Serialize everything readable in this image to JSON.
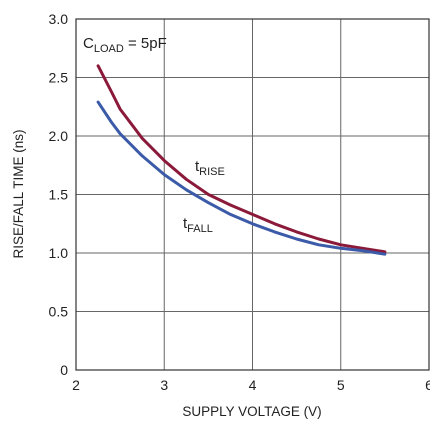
{
  "chart_data": {
    "type": "line",
    "xlabel": "SUPPLY VOLTAGE (V)",
    "ylabel": "RISE/FALL TIME (ns)",
    "xlim": [
      2,
      6
    ],
    "ylim": [
      0,
      3.0
    ],
    "x_ticks": [
      "2",
      "3",
      "4",
      "5",
      "6"
    ],
    "y_ticks": [
      "0",
      "0.5",
      "1.0",
      "1.5",
      "2.0",
      "2.5",
      "3.0"
    ],
    "grid": true,
    "annotations": {
      "condition": {
        "base": "C",
        "sub": "LOAD",
        "rest": " = 5pF"
      },
      "rise_label": {
        "base": "t",
        "sub": "RISE"
      },
      "fall_label": {
        "base": "t",
        "sub": "FALL"
      }
    },
    "series": [
      {
        "name": "tRISE",
        "color": "#8b1a3a",
        "x": [
          2.25,
          2.4,
          2.5,
          2.75,
          3.0,
          3.25,
          3.5,
          3.75,
          4.0,
          4.25,
          4.5,
          4.75,
          5.0,
          5.25,
          5.5
        ],
        "y": [
          2.6,
          2.38,
          2.23,
          1.98,
          1.79,
          1.63,
          1.5,
          1.41,
          1.33,
          1.25,
          1.18,
          1.12,
          1.07,
          1.04,
          1.01
        ]
      },
      {
        "name": "tFALL",
        "color": "#3b5aa8",
        "x": [
          2.25,
          2.4,
          2.5,
          2.75,
          3.0,
          3.25,
          3.5,
          3.75,
          4.0,
          4.25,
          4.5,
          4.75,
          5.0,
          5.25,
          5.5
        ],
        "y": [
          2.29,
          2.12,
          2.02,
          1.83,
          1.67,
          1.54,
          1.43,
          1.33,
          1.25,
          1.18,
          1.12,
          1.07,
          1.04,
          1.02,
          0.99
        ]
      }
    ]
  }
}
